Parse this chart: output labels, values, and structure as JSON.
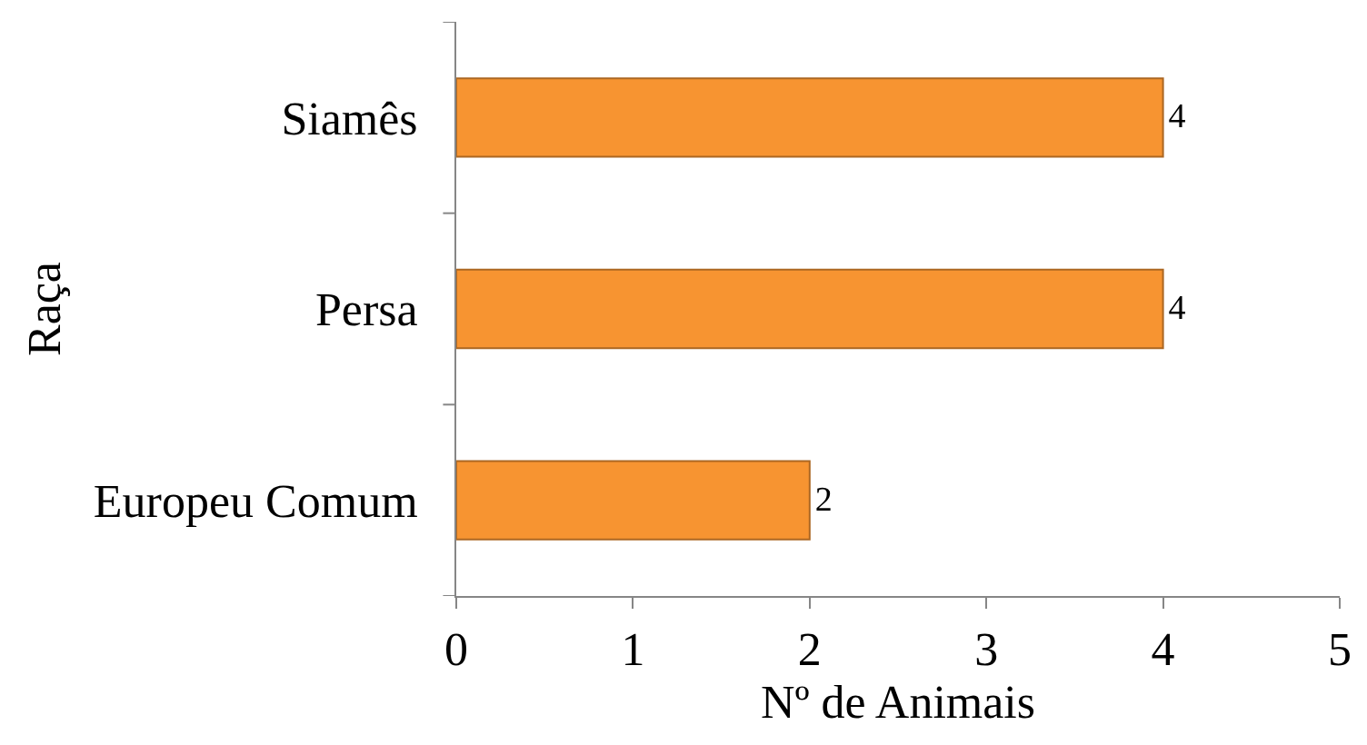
{
  "chart_data": {
    "type": "bar",
    "orientation": "horizontal",
    "xlabel": "Nº de Animais",
    "ylabel": "Raça",
    "categories": [
      "Siamês",
      "Persa",
      "Europeu Comum"
    ],
    "values": [
      4,
      4,
      2
    ],
    "color": "#f79431",
    "xlim": [
      0,
      5
    ],
    "xticks": [
      0,
      1,
      2,
      3,
      4,
      5
    ],
    "data_labels": true
  }
}
